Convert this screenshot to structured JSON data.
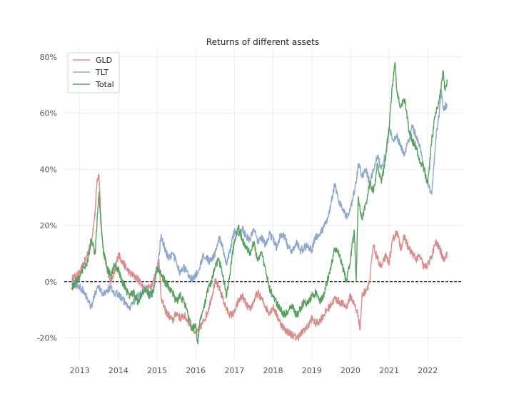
{
  "chart_data": {
    "type": "line",
    "title": "Returns of different assets",
    "xlabel": "",
    "ylabel": "",
    "xlim": [
      2012.6,
      2022.9
    ],
    "ylim": [
      -0.28,
      0.83
    ],
    "x_ticks": [
      2013,
      2014,
      2015,
      2016,
      2017,
      2018,
      2019,
      2020,
      2021,
      2022
    ],
    "x_tick_labels": [
      "2013",
      "2014",
      "2015",
      "2016",
      "2017",
      "2018",
      "2019",
      "2020",
      "2021",
      "2022"
    ],
    "y_ticks": [
      -0.2,
      0.0,
      0.2,
      0.4,
      0.6,
      0.8
    ],
    "y_tick_labels": [
      "-20%",
      "0%",
      "20%",
      "40%",
      "60%",
      "80%"
    ],
    "grid": true,
    "legend_position": "top-left",
    "reference_line": {
      "y": 0,
      "style": "dashed",
      "color": "#000000"
    },
    "series": [
      {
        "name": "GLD",
        "color": "#d98c8c",
        "x": [
          2012.8,
          2013.0,
          2013.15,
          2013.3,
          2013.4,
          2013.45,
          2013.5,
          2013.55,
          2013.6,
          2013.7,
          2013.8,
          2013.9,
          2014.0,
          2014.1,
          2014.2,
          2014.3,
          2014.4,
          2014.5,
          2014.6,
          2014.7,
          2014.8,
          2014.9,
          2015.0,
          2015.05,
          2015.1,
          2015.2,
          2015.3,
          2015.4,
          2015.5,
          2015.6,
          2015.7,
          2015.8,
          2015.9,
          2016.0,
          2016.1,
          2016.2,
          2016.3,
          2016.4,
          2016.5,
          2016.6,
          2016.7,
          2016.8,
          2016.9,
          2017.0,
          2017.1,
          2017.2,
          2017.3,
          2017.4,
          2017.5,
          2017.6,
          2017.7,
          2017.8,
          2017.9,
          2018.0,
          2018.1,
          2018.2,
          2018.3,
          2018.4,
          2018.5,
          2018.6,
          2018.7,
          2018.8,
          2018.9,
          2019.0,
          2019.1,
          2019.2,
          2019.3,
          2019.4,
          2019.5,
          2019.6,
          2019.7,
          2019.8,
          2019.9,
          2020.0,
          2020.1,
          2020.2,
          2020.25,
          2020.3,
          2020.4,
          2020.5,
          2020.55,
          2020.6,
          2020.65,
          2020.7,
          2020.8,
          2020.9,
          2021.0,
          2021.1,
          2021.2,
          2021.3,
          2021.4,
          2021.5,
          2021.6,
          2021.7,
          2021.8,
          2021.9,
          2022.0,
          2022.1,
          2022.2,
          2022.3,
          2022.4,
          2022.5
        ],
        "y": [
          0.01,
          0.03,
          0.08,
          0.14,
          0.25,
          0.36,
          0.38,
          0.22,
          0.12,
          0.05,
          0.0,
          0.03,
          0.1,
          0.07,
          0.05,
          0.03,
          0.02,
          0.01,
          -0.01,
          -0.03,
          -0.02,
          0.0,
          0.05,
          0.08,
          -0.05,
          -0.1,
          -0.12,
          -0.14,
          -0.11,
          -0.13,
          -0.12,
          -0.14,
          -0.16,
          -0.18,
          -0.17,
          -0.14,
          -0.11,
          -0.06,
          0.0,
          -0.02,
          -0.06,
          -0.1,
          -0.12,
          -0.11,
          -0.07,
          -0.05,
          -0.08,
          -0.1,
          -0.07,
          -0.04,
          -0.06,
          -0.09,
          -0.11,
          -0.09,
          -0.12,
          -0.15,
          -0.17,
          -0.18,
          -0.19,
          -0.2,
          -0.19,
          -0.17,
          -0.16,
          -0.13,
          -0.15,
          -0.14,
          -0.12,
          -0.1,
          -0.08,
          -0.06,
          -0.07,
          -0.08,
          -0.09,
          -0.05,
          -0.08,
          -0.12,
          -0.17,
          -0.05,
          -0.03,
          0.0,
          0.08,
          0.13,
          0.1,
          0.08,
          0.05,
          0.09,
          0.07,
          0.15,
          0.18,
          0.12,
          0.16,
          0.12,
          0.1,
          0.08,
          0.09,
          0.05,
          0.06,
          0.09,
          0.14,
          0.12,
          0.08,
          0.1
        ]
      },
      {
        "name": "TLT",
        "color": "#8fa8cc",
        "x": [
          2012.8,
          2013.0,
          2013.1,
          2013.2,
          2013.3,
          2013.4,
          2013.5,
          2013.6,
          2013.7,
          2013.8,
          2013.9,
          2014.0,
          2014.1,
          2014.2,
          2014.3,
          2014.4,
          2014.5,
          2014.6,
          2014.7,
          2014.8,
          2014.9,
          2015.0,
          2015.05,
          2015.1,
          2015.2,
          2015.3,
          2015.4,
          2015.5,
          2015.6,
          2015.7,
          2015.8,
          2015.9,
          2016.0,
          2016.1,
          2016.2,
          2016.3,
          2016.4,
          2016.5,
          2016.6,
          2016.7,
          2016.8,
          2016.9,
          2017.0,
          2017.1,
          2017.2,
          2017.3,
          2017.4,
          2017.5,
          2017.6,
          2017.7,
          2017.8,
          2017.9,
          2018.0,
          2018.1,
          2018.2,
          2018.3,
          2018.4,
          2018.5,
          2018.6,
          2018.7,
          2018.8,
          2018.9,
          2019.0,
          2019.1,
          2019.2,
          2019.3,
          2019.4,
          2019.5,
          2019.6,
          2019.7,
          2019.8,
          2019.9,
          2020.0,
          2020.1,
          2020.15,
          2020.2,
          2020.3,
          2020.4,
          2020.5,
          2020.6,
          2020.7,
          2020.8,
          2020.9,
          2021.0,
          2021.1,
          2021.2,
          2021.3,
          2021.4,
          2021.5,
          2021.6,
          2021.7,
          2021.8,
          2021.9,
          2022.0,
          2022.1,
          2022.15,
          2022.2,
          2022.3,
          2022.35,
          2022.4,
          2022.5
        ],
        "y": [
          0.0,
          -0.02,
          -0.03,
          -0.06,
          -0.09,
          -0.04,
          -0.02,
          -0.05,
          -0.03,
          -0.02,
          -0.05,
          -0.04,
          -0.06,
          -0.08,
          -0.09,
          -0.07,
          -0.05,
          -0.04,
          -0.02,
          -0.05,
          -0.03,
          0.05,
          0.1,
          0.16,
          0.12,
          0.08,
          0.1,
          0.07,
          0.03,
          0.05,
          0.03,
          0.01,
          0.02,
          0.05,
          0.1,
          0.08,
          0.07,
          0.1,
          0.16,
          0.12,
          0.06,
          0.12,
          0.18,
          0.17,
          0.19,
          0.16,
          0.15,
          0.19,
          0.14,
          0.16,
          0.13,
          0.17,
          0.15,
          0.12,
          0.17,
          0.16,
          0.12,
          0.11,
          0.14,
          0.11,
          0.12,
          0.13,
          0.11,
          0.16,
          0.17,
          0.19,
          0.22,
          0.28,
          0.35,
          0.28,
          0.26,
          0.23,
          0.26,
          0.32,
          0.35,
          0.42,
          0.38,
          0.4,
          0.35,
          0.4,
          0.45,
          0.4,
          0.45,
          0.55,
          0.5,
          0.52,
          0.48,
          0.45,
          0.5,
          0.55,
          0.52,
          0.48,
          0.4,
          0.35,
          0.31,
          0.4,
          0.5,
          0.6,
          0.68,
          0.62,
          0.63
        ]
      },
      {
        "name": "Total",
        "color": "#57a15f",
        "x": [
          2012.8,
          2013.0,
          2013.1,
          2013.2,
          2013.3,
          2013.4,
          2013.45,
          2013.5,
          2013.55,
          2013.6,
          2013.7,
          2013.8,
          2013.9,
          2014.0,
          2014.1,
          2014.2,
          2014.3,
          2014.4,
          2014.5,
          2014.6,
          2014.7,
          2014.8,
          2014.9,
          2015.0,
          2015.1,
          2015.2,
          2015.3,
          2015.4,
          2015.5,
          2015.6,
          2015.7,
          2015.8,
          2015.9,
          2016.0,
          2016.05,
          2016.1,
          2016.2,
          2016.3,
          2016.4,
          2016.5,
          2016.6,
          2016.7,
          2016.8,
          2016.9,
          2017.0,
          2017.1,
          2017.2,
          2017.3,
          2017.4,
          2017.5,
          2017.6,
          2017.7,
          2017.8,
          2017.9,
          2018.0,
          2018.1,
          2018.2,
          2018.3,
          2018.4,
          2018.5,
          2018.6,
          2018.7,
          2018.8,
          2018.9,
          2019.0,
          2019.1,
          2019.2,
          2019.3,
          2019.4,
          2019.5,
          2019.6,
          2019.7,
          2019.8,
          2019.9,
          2020.0,
          2020.1,
          2020.15,
          2020.2,
          2020.3,
          2020.4,
          2020.5,
          2020.6,
          2020.7,
          2020.8,
          2020.9,
          2021.0,
          2021.1,
          2021.15,
          2021.2,
          2021.3,
          2021.4,
          2021.5,
          2021.6,
          2021.7,
          2021.8,
          2021.9,
          2022.0,
          2022.1,
          2022.2,
          2022.3,
          2022.4,
          2022.45,
          2022.5
        ],
        "y": [
          -0.02,
          0.02,
          0.05,
          0.07,
          0.15,
          0.1,
          0.22,
          0.32,
          0.2,
          0.12,
          0.05,
          0.02,
          0.06,
          0.04,
          0.0,
          -0.03,
          -0.05,
          -0.04,
          -0.07,
          -0.05,
          -0.02,
          -0.05,
          -0.04,
          0.05,
          0.03,
          0.0,
          -0.02,
          -0.04,
          -0.07,
          -0.05,
          -0.07,
          -0.12,
          -0.17,
          -0.15,
          -0.22,
          -0.15,
          -0.1,
          -0.03,
          0.0,
          0.05,
          0.08,
          0.02,
          -0.05,
          0.05,
          0.15,
          0.2,
          0.15,
          0.12,
          0.1,
          0.14,
          0.08,
          0.1,
          0.05,
          -0.02,
          -0.05,
          -0.08,
          -0.1,
          -0.12,
          -0.1,
          -0.08,
          -0.12,
          -0.1,
          -0.07,
          -0.08,
          -0.05,
          -0.04,
          -0.07,
          -0.05,
          0.0,
          0.06,
          0.12,
          0.1,
          0.05,
          0.0,
          0.08,
          0.18,
          0.0,
          0.3,
          0.22,
          0.28,
          0.35,
          0.32,
          0.42,
          0.35,
          0.43,
          0.55,
          0.72,
          0.78,
          0.68,
          0.62,
          0.65,
          0.55,
          0.5,
          0.48,
          0.42,
          0.4,
          0.35,
          0.5,
          0.6,
          0.65,
          0.75,
          0.68,
          0.72
        ]
      }
    ]
  }
}
